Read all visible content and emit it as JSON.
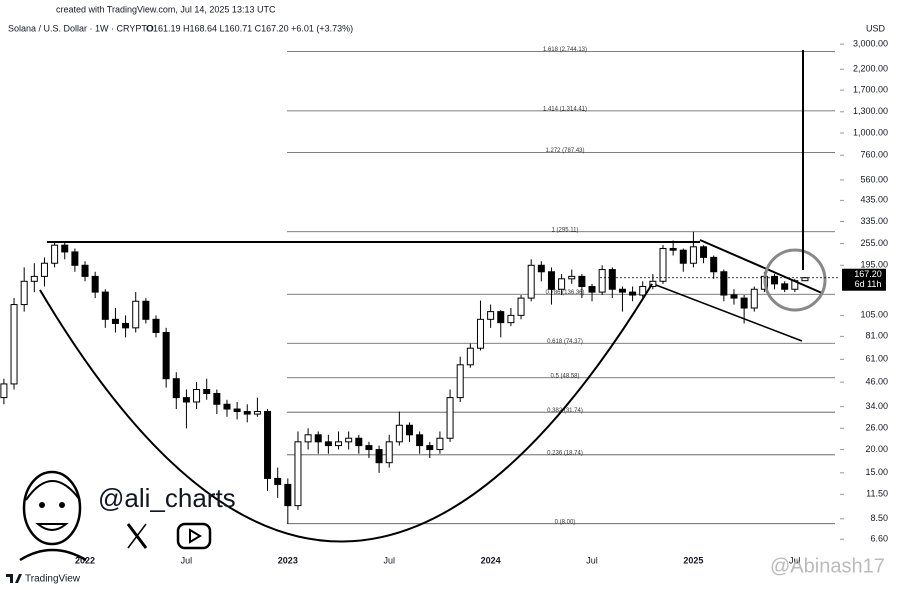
{
  "chart_data": {
    "type": "candlestick",
    "credit": "created with TradingView.com, Jul 14, 2025 13:13 UTC",
    "title": "Solana / U.S. Dollar · 1W · CRYPTO",
    "ohlc_text": "O161.19 H168.64 L160.71 C167.20 +6.01 (+3.73%)",
    "currency": "USD",
    "log_scale": true,
    "up_color": "#ffffff",
    "down_color": "#000000",
    "categories": [
      null,
      null,
      null,
      null,
      null,
      null,
      null,
      null,
      "2022",
      null,
      null,
      null,
      null,
      null,
      null,
      null,
      null,
      null,
      "Jul",
      null,
      null,
      null,
      null,
      null,
      null,
      null,
      null,
      null,
      "2023",
      null,
      null,
      null,
      null,
      null,
      null,
      null,
      null,
      null,
      "Jul",
      null,
      null,
      null,
      null,
      null,
      null,
      null,
      null,
      null,
      "2024",
      null,
      null,
      null,
      null,
      null,
      null,
      null,
      null,
      null,
      "Jul",
      null,
      null,
      null,
      null,
      null,
      null,
      null,
      null,
      null,
      "2025",
      null,
      null,
      null,
      null,
      null,
      null,
      null,
      null,
      null,
      "Jul",
      null
    ],
    "open": [
      38,
      45,
      120,
      160,
      170,
      200,
      250,
      230,
      195,
      170,
      140,
      100,
      95,
      90,
      125,
      100,
      85,
      48,
      38,
      36,
      42,
      40,
      35,
      33,
      32,
      31,
      32,
      14,
      13,
      10,
      22,
      24,
      22,
      21,
      22,
      23,
      21,
      20,
      17,
      22,
      27,
      24,
      21,
      20,
      23,
      38,
      57,
      70,
      100,
      110,
      96,
      105,
      130,
      195,
      180,
      145,
      165,
      170,
      150,
      140,
      185,
      145,
      140,
      135,
      150,
      160,
      240,
      235,
      200,
      245,
      215,
      180,
      135,
      130,
      115,
      145,
      170,
      155,
      145,
      161.19
    ],
    "high": [
      48,
      130,
      190,
      200,
      215,
      260,
      258,
      240,
      205,
      180,
      145,
      115,
      105,
      140,
      130,
      105,
      90,
      52,
      42,
      46,
      48,
      42,
      37,
      36,
      35,
      38,
      33,
      16,
      14,
      25,
      26,
      25,
      24,
      25,
      25,
      24,
      22,
      21,
      24,
      32,
      28,
      25,
      22,
      25,
      42,
      63,
      74,
      126,
      120,
      112,
      115,
      135,
      210,
      205,
      190,
      175,
      185,
      175,
      155,
      195,
      190,
      150,
      150,
      160,
      175,
      250,
      265,
      240,
      295,
      250,
      220,
      185,
      145,
      135,
      150,
      180,
      175,
      160,
      165,
      168.64
    ],
    "low": [
      35,
      42,
      110,
      140,
      150,
      190,
      210,
      180,
      160,
      130,
      90,
      85,
      80,
      85,
      95,
      80,
      43,
      33,
      26,
      33,
      37,
      31,
      30,
      29,
      28,
      30,
      12,
      11,
      8,
      9.5,
      20,
      19,
      19,
      20,
      20,
      19,
      18,
      15,
      16,
      21,
      22,
      19,
      18,
      19,
      22,
      36,
      55,
      68,
      90,
      80,
      92,
      100,
      125,
      160,
      120,
      135,
      155,
      130,
      125,
      135,
      130,
      110,
      125,
      130,
      145,
      155,
      220,
      180,
      190,
      200,
      165,
      125,
      120,
      95,
      110,
      140,
      145,
      140,
      140,
      160.71
    ],
    "close": [
      45,
      120,
      160,
      170,
      200,
      250,
      230,
      195,
      170,
      140,
      100,
      95,
      90,
      125,
      100,
      85,
      48,
      38,
      36,
      42,
      40,
      35,
      33,
      32,
      31,
      32,
      14,
      13,
      10,
      22,
      24,
      22,
      21,
      22,
      23,
      21,
      20,
      17,
      22,
      27,
      24,
      21,
      20,
      23,
      38,
      57,
      70,
      100,
      110,
      96,
      105,
      130,
      195,
      180,
      145,
      165,
      170,
      150,
      140,
      185,
      145,
      140,
      135,
      150,
      160,
      240,
      235,
      200,
      245,
      215,
      180,
      135,
      130,
      115,
      145,
      170,
      155,
      145,
      161.19,
      167.2
    ],
    "ylim": [
      5.5,
      3800
    ],
    "yticks": [
      {
        "value": 3000,
        "label": "3,000.00"
      },
      {
        "value": 2200,
        "label": "2,200.00"
      },
      {
        "value": 1700,
        "label": "1,700.00"
      },
      {
        "value": 1300,
        "label": "1,300.00"
      },
      {
        "value": 1000,
        "label": "1,000.00"
      },
      {
        "value": 760,
        "label": "760.00"
      },
      {
        "value": 560,
        "label": "560.00"
      },
      {
        "value": 435,
        "label": "435.00"
      },
      {
        "value": 335,
        "label": "335.00"
      },
      {
        "value": 255,
        "label": "255.00"
      },
      {
        "value": 195,
        "label": "195.00"
      },
      {
        "value": 105,
        "label": "105.00"
      },
      {
        "value": 81,
        "label": "81.00"
      },
      {
        "value": 61,
        "label": "61.00"
      },
      {
        "value": 46,
        "label": "46.00"
      },
      {
        "value": 34,
        "label": "34.00"
      },
      {
        "value": 26,
        "label": "26.00"
      },
      {
        "value": 20,
        "label": "20.00"
      },
      {
        "value": 15,
        "label": "15.00"
      },
      {
        "value": 11.5,
        "label": "11.50"
      },
      {
        "value": 8.5,
        "label": "8.50"
      },
      {
        "value": 6.6,
        "label": "6.60"
      }
    ],
    "fib_levels": [
      {
        "value": 2744.13,
        "label": "1.618 (2,744.13)"
      },
      {
        "value": 1314.41,
        "label": "1.414 (1,314.41)"
      },
      {
        "value": 787.43,
        "label": "1.272 (787.43)"
      },
      {
        "value": 295.11,
        "label": "1 (295.11)"
      },
      {
        "value": 136.36,
        "label": "0.786 (136.36)"
      },
      {
        "value": 74.37,
        "label": "0.618 (74.37)"
      },
      {
        "value": 48.58,
        "label": "0.5 (48.58)"
      },
      {
        "value": 31.74,
        "label": "0.382 (31.74)"
      },
      {
        "value": 18.74,
        "label": "0.236 (18.74)"
      },
      {
        "value": 8,
        "label": "0 (8.00)"
      }
    ],
    "last_price": {
      "value": 167.2,
      "label": "167.20",
      "countdown": "6d 11h"
    },
    "author": "@ali_charts",
    "brand": "TradingView",
    "watermark": "@Abinash17"
  }
}
